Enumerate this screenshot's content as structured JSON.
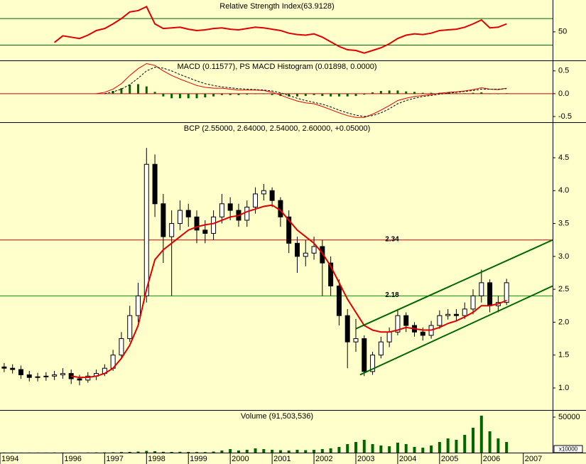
{
  "chart_data": [
    {
      "type": "line",
      "title": "Relative Strength Index(63.9128)",
      "x": [
        1994.6,
        1994.8,
        1995.0,
        1995.2,
        1995.4,
        1995.6,
        1995.8,
        1996.0,
        1996.2,
        1996.4,
        1996.6,
        1996.8,
        1997.0,
        1997.2,
        1997.4,
        1997.6,
        1997.8,
        1998.0,
        1998.2,
        1998.4,
        1998.6,
        1998.8,
        1999.0,
        1999.2,
        1999.4,
        1999.6,
        1999.8,
        2000.0,
        2000.2,
        2000.4,
        2000.6,
        2000.8,
        2001.0,
        2001.2,
        2001.4,
        2001.6,
        2001.8,
        2002.0,
        2002.2,
        2002.4,
        2002.6,
        2002.8,
        2003.0,
        2003.2,
        2003.4,
        2003.6,
        2003.8,
        2004.0,
        2004.2,
        2004.4,
        2004.6,
        2004.8,
        2005.0,
        2005.2,
        2005.4,
        2005.6,
        2005.8,
        2006.0,
        2006.2,
        2006.4,
        2006.6
      ],
      "xlim": [
        1994.5,
        2007.7
      ],
      "ylim": [
        7,
        98
      ],
      "yticks": [
        50
      ],
      "hlines": [
        70,
        30
      ],
      "hline_color": "#006600",
      "series": [
        {
          "color": "#e00000",
          "values": [
            null,
            null,
            null,
            null,
            null,
            null,
            34,
            44,
            42,
            40,
            45,
            52,
            55,
            62,
            70,
            80,
            82,
            88,
            62,
            55,
            56,
            57,
            54,
            52,
            53,
            55,
            56,
            54,
            53,
            55,
            57,
            56,
            54,
            52,
            48,
            46,
            45,
            47,
            42,
            35,
            28,
            23,
            22,
            18,
            22,
            26,
            32,
            40,
            45,
            47,
            46,
            48,
            52,
            53,
            54,
            57,
            62,
            68,
            56,
            57,
            62
          ]
        }
      ]
    },
    {
      "type": "macd",
      "title": "MACD (0.11577), PS MACD Histogram (0.01898, 0.0000)",
      "x": [
        1994.6,
        1994.8,
        1995.0,
        1995.2,
        1995.4,
        1995.6,
        1995.8,
        1996.0,
        1996.2,
        1996.4,
        1996.6,
        1996.8,
        1997.0,
        1997.2,
        1997.4,
        1997.6,
        1997.8,
        1998.0,
        1998.2,
        1998.4,
        1998.6,
        1998.8,
        1999.0,
        1999.2,
        1999.4,
        1999.6,
        1999.8,
        2000.0,
        2000.2,
        2000.4,
        2000.6,
        2000.8,
        2001.0,
        2001.2,
        2001.4,
        2001.6,
        2001.8,
        2002.0,
        2002.2,
        2002.4,
        2002.6,
        2002.8,
        2003.0,
        2003.2,
        2003.4,
        2003.6,
        2003.8,
        2004.0,
        2004.2,
        2004.4,
        2004.6,
        2004.8,
        2005.0,
        2005.2,
        2005.4,
        2005.6,
        2005.8,
        2006.0,
        2006.2,
        2006.4,
        2006.6
      ],
      "xlim": [
        1994.5,
        2007.7
      ],
      "ylim": [
        -0.625,
        0.73
      ],
      "yticks": [
        0.5,
        {
          "value": 0,
          "label": "0.0"
        },
        -0.5
      ],
      "hlines": [
        0
      ],
      "hline_color": "#cc0000",
      "series": [
        {
          "color": "#e00000",
          "style": "solid",
          "values": [
            null,
            null,
            null,
            null,
            null,
            null,
            null,
            null,
            null,
            null,
            null,
            0.0,
            0.03,
            0.1,
            0.22,
            0.4,
            0.55,
            0.66,
            0.62,
            0.5,
            0.4,
            0.32,
            0.25,
            0.18,
            0.14,
            0.12,
            0.12,
            0.1,
            0.08,
            0.08,
            0.08,
            0.07,
            0.03,
            -0.03,
            -0.1,
            -0.16,
            -0.2,
            -0.22,
            -0.28,
            -0.35,
            -0.42,
            -0.48,
            -0.52,
            -0.52,
            -0.45,
            -0.36,
            -0.26,
            -0.15,
            -0.1,
            -0.06,
            -0.04,
            -0.02,
            0.01,
            0.03,
            0.04,
            0.06,
            0.09,
            0.13,
            0.1,
            0.09,
            0.12
          ]
        },
        {
          "color": "#000000",
          "style": "dashed",
          "values": [
            null,
            null,
            null,
            null,
            null,
            null,
            null,
            null,
            null,
            null,
            null,
            null,
            0.0,
            0.04,
            0.1,
            0.2,
            0.34,
            0.5,
            0.58,
            0.56,
            0.5,
            0.42,
            0.35,
            0.28,
            0.22,
            0.18,
            0.15,
            0.13,
            0.11,
            0.1,
            0.09,
            0.08,
            0.06,
            0.02,
            -0.04,
            -0.1,
            -0.15,
            -0.19,
            -0.23,
            -0.29,
            -0.36,
            -0.42,
            -0.47,
            -0.5,
            -0.48,
            -0.42,
            -0.33,
            -0.22,
            -0.15,
            -0.1,
            -0.06,
            -0.04,
            -0.01,
            0.01,
            0.03,
            0.05,
            0.07,
            0.1,
            0.1,
            0.1,
            0.11
          ]
        }
      ],
      "histogram": {
        "color": "#006600",
        "values": [
          null,
          null,
          null,
          null,
          null,
          null,
          null,
          null,
          null,
          null,
          null,
          null,
          null,
          0.06,
          0.12,
          0.2,
          0.21,
          0.16,
          0.04,
          -0.06,
          -0.1,
          -0.1,
          -0.1,
          -0.1,
          -0.08,
          -0.06,
          -0.03,
          -0.03,
          -0.03,
          -0.02,
          -0.01,
          -0.01,
          -0.03,
          -0.05,
          -0.06,
          -0.06,
          -0.05,
          -0.03,
          -0.05,
          -0.06,
          -0.06,
          -0.06,
          -0.05,
          -0.02,
          0.03,
          0.06,
          0.07,
          0.07,
          0.05,
          0.04,
          0.02,
          0.02,
          0.02,
          0.02,
          0.01,
          0.01,
          0.02,
          0.03,
          0.0,
          -0.01,
          0.01
        ]
      }
    },
    {
      "type": "candlestick",
      "title": "BCP (2.55000, 2.64000, 2.54000, 2.60000, +0.05000)",
      "x": [
        1994.6,
        1994.8,
        1995.0,
        1995.2,
        1995.4,
        1995.6,
        1995.8,
        1996.0,
        1996.2,
        1996.4,
        1996.6,
        1996.8,
        1997.0,
        1997.2,
        1997.4,
        1997.6,
        1997.8,
        1998.0,
        1998.2,
        1998.4,
        1998.6,
        1998.8,
        1999.0,
        1999.2,
        1999.4,
        1999.6,
        1999.8,
        2000.0,
        2000.2,
        2000.4,
        2000.6,
        2000.8,
        2001.0,
        2001.2,
        2001.4,
        2001.6,
        2001.8,
        2002.0,
        2002.2,
        2002.4,
        2002.6,
        2002.8,
        2003.0,
        2003.2,
        2003.4,
        2003.6,
        2003.8,
        2004.0,
        2004.2,
        2004.4,
        2004.6,
        2004.8,
        2005.0,
        2005.2,
        2005.4,
        2005.6,
        2005.8,
        2006.0,
        2006.2,
        2006.4,
        2006.6
      ],
      "xlim": [
        1994.5,
        2007.7
      ],
      "ylim": [
        0.665,
        5.04
      ],
      "yticks": [
        {
          "value": 1,
          "label": "1.0"
        },
        1.5,
        {
          "value": 2,
          "label": "2.0"
        },
        2.5,
        {
          "value": 3,
          "label": "3.0"
        },
        3.5,
        {
          "value": 4,
          "label": "4.0"
        },
        4.5
      ],
      "open": [
        1.32,
        1.3,
        1.28,
        1.2,
        1.16,
        1.17,
        1.18,
        1.2,
        1.22,
        1.14,
        1.12,
        1.18,
        1.22,
        1.3,
        1.5,
        1.75,
        2.1,
        2.4,
        4.4,
        3.8,
        3.3,
        3.5,
        3.7,
        3.6,
        3.4,
        3.35,
        3.6,
        3.8,
        3.7,
        3.55,
        3.75,
        3.95,
        4.0,
        3.85,
        3.6,
        3.2,
        3.0,
        3.05,
        3.15,
        2.9,
        2.55,
        2.1,
        1.7,
        1.75,
        1.25,
        1.5,
        1.7,
        1.85,
        2.1,
        1.95,
        1.85,
        1.8,
        1.95,
        2.1,
        2.12,
        2.1,
        2.2,
        2.4,
        2.6,
        2.25,
        2.3
      ],
      "high": [
        1.38,
        1.36,
        1.34,
        1.26,
        1.23,
        1.24,
        1.26,
        1.3,
        1.28,
        1.2,
        1.24,
        1.28,
        1.36,
        1.58,
        1.85,
        2.25,
        2.6,
        4.65,
        4.55,
        3.95,
        3.7,
        3.85,
        3.8,
        3.7,
        3.55,
        3.7,
        3.95,
        3.9,
        3.8,
        3.85,
        4.05,
        4.1,
        4.05,
        3.9,
        3.7,
        3.3,
        3.25,
        3.3,
        3.25,
        3.0,
        2.65,
        2.2,
        2.05,
        1.8,
        1.55,
        1.78,
        1.92,
        2.2,
        2.15,
        2.0,
        1.92,
        2.02,
        2.18,
        2.2,
        2.2,
        2.3,
        2.5,
        2.8,
        2.65,
        2.4,
        2.66
      ],
      "low": [
        1.24,
        1.22,
        1.14,
        1.1,
        1.1,
        1.11,
        1.12,
        1.14,
        1.06,
        1.04,
        1.08,
        1.12,
        1.18,
        1.26,
        1.45,
        1.7,
        2.0,
        2.3,
        3.6,
        2.9,
        2.4,
        3.4,
        3.45,
        3.2,
        3.2,
        3.25,
        3.5,
        3.55,
        3.45,
        3.45,
        3.65,
        3.85,
        3.75,
        3.45,
        3.05,
        2.75,
        2.85,
        2.95,
        2.4,
        2.4,
        1.95,
        1.3,
        1.55,
        1.18,
        1.2,
        1.45,
        1.62,
        1.8,
        1.85,
        1.78,
        1.72,
        1.75,
        1.9,
        2.04,
        2.02,
        2.05,
        2.12,
        2.3,
        2.15,
        2.15,
        2.26
      ],
      "close": [
        1.3,
        1.28,
        1.2,
        1.16,
        1.17,
        1.18,
        1.2,
        1.22,
        1.14,
        1.12,
        1.18,
        1.22,
        1.3,
        1.5,
        1.75,
        2.1,
        2.4,
        4.4,
        3.8,
        3.3,
        3.5,
        3.7,
        3.6,
        3.4,
        3.35,
        3.6,
        3.8,
        3.7,
        3.55,
        3.75,
        3.95,
        4.0,
        3.85,
        3.6,
        3.2,
        3.0,
        3.05,
        3.15,
        2.9,
        2.55,
        2.1,
        1.7,
        1.75,
        1.25,
        1.5,
        1.7,
        1.85,
        2.1,
        1.95,
        1.85,
        1.8,
        1.95,
        2.1,
        2.12,
        2.1,
        2.2,
        2.4,
        2.6,
        2.25,
        2.3,
        2.6
      ],
      "series": [
        {
          "color": "#dd0000",
          "values": [
            null,
            null,
            null,
            null,
            null,
            null,
            null,
            null,
            1.18,
            1.16,
            1.16,
            1.18,
            1.22,
            1.3,
            1.45,
            1.65,
            1.95,
            2.5,
            2.95,
            3.1,
            3.2,
            3.3,
            3.4,
            3.45,
            3.48,
            3.5,
            3.55,
            3.6,
            3.62,
            3.68,
            3.72,
            3.76,
            3.78,
            3.7,
            3.55,
            3.4,
            3.3,
            3.2,
            3.05,
            2.85,
            2.6,
            2.35,
            2.15,
            1.95,
            1.88,
            1.85,
            1.85,
            1.88,
            1.92,
            1.9,
            1.88,
            1.88,
            1.92,
            1.98,
            2.02,
            2.08,
            2.15,
            2.25,
            2.25,
            2.28,
            2.33
          ]
        }
      ],
      "trendlines": [
        {
          "color": "#006600",
          "x": [
            2003.0,
            2007.7
          ],
          "y": [
            1.9,
            3.25
          ]
        },
        {
          "color": "#006600",
          "x": [
            2003.1,
            2007.7
          ],
          "y": [
            1.2,
            2.55
          ]
        }
      ],
      "annotations": [
        {
          "text": "2.34",
          "color": "#cc0000",
          "y": 3.25
        },
        {
          "text": "2.18",
          "color": "#009900",
          "y": 2.4
        }
      ]
    },
    {
      "type": "bar",
      "title": "Volume (91,503,536)",
      "unit_label": "x10000",
      "color": "#006600",
      "x": [
        1994.6,
        1994.8,
        1995.0,
        1995.2,
        1995.4,
        1995.6,
        1995.8,
        1996.0,
        1996.2,
        1996.4,
        1996.6,
        1996.8,
        1997.0,
        1997.2,
        1997.4,
        1997.6,
        1997.8,
        1998.0,
        1998.2,
        1998.4,
        1998.6,
        1998.8,
        1999.0,
        1999.2,
        1999.4,
        1999.6,
        1999.8,
        2000.0,
        2000.2,
        2000.4,
        2000.6,
        2000.8,
        2001.0,
        2001.2,
        2001.4,
        2001.6,
        2001.8,
        2002.0,
        2002.2,
        2002.4,
        2002.6,
        2002.8,
        2003.0,
        2003.2,
        2003.4,
        2003.6,
        2003.8,
        2004.0,
        2004.2,
        2004.4,
        2004.6,
        2004.8,
        2005.0,
        2005.2,
        2005.4,
        2005.6,
        2005.8,
        2006.0,
        2006.2,
        2006.4,
        2006.6
      ],
      "xlim": [
        1994.5,
        2007.7
      ],
      "ylim": [
        0,
        60000
      ],
      "yticks": [
        50000
      ],
      "xticks": [
        {
          "value": 1994.5,
          "label": "1994"
        },
        1996,
        1997,
        1998,
        1999,
        2000,
        2001,
        2002,
        2003,
        2004,
        2005,
        2006,
        2007
      ],
      "values": [
        200,
        200,
        150,
        150,
        150,
        150,
        200,
        200,
        150,
        150,
        200,
        300,
        400,
        500,
        800,
        1000,
        1500,
        2500,
        2000,
        1200,
        1000,
        1200,
        1000,
        900,
        800,
        1500,
        3000,
        5000,
        3000,
        4000,
        6000,
        5000,
        4000,
        3500,
        3000,
        4000,
        3500,
        4000,
        5000,
        6000,
        8000,
        12000,
        15000,
        18000,
        12000,
        10000,
        9000,
        14000,
        12000,
        8000,
        7000,
        10000,
        15000,
        20000,
        18000,
        25000,
        35000,
        52000,
        30000,
        20000,
        15000
      ]
    }
  ]
}
